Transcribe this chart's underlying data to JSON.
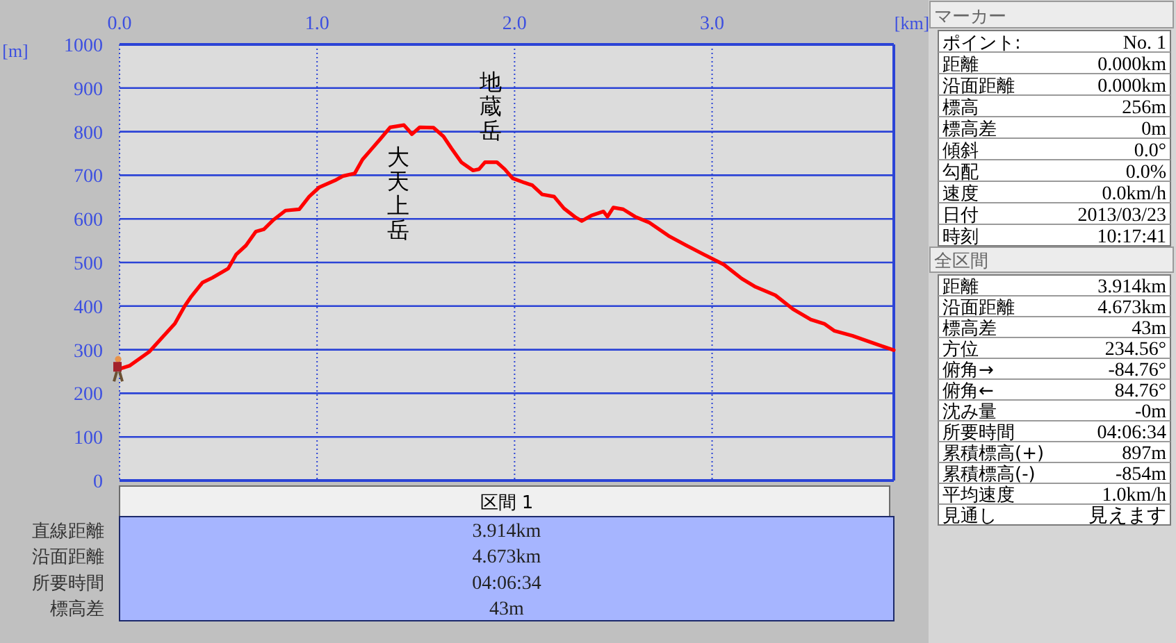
{
  "chart_data": [
    {
      "type": "line",
      "xlabel": "[km]",
      "ylabel": "[m]",
      "xlim": [
        0,
        3.92
      ],
      "xticks": [
        {
          "value": 0,
          "label": "0.0"
        },
        {
          "value": 1,
          "label": "1.0"
        },
        {
          "value": 2,
          "label": "2.0"
        },
        {
          "value": 3,
          "label": "3.0"
        }
      ],
      "ylim": [
        0,
        1000
      ],
      "yticks": [
        0,
        100,
        200,
        300,
        400,
        500,
        600,
        700,
        800,
        900,
        1000
      ],
      "grid": true,
      "annotations": [
        {
          "text": "大天上岳",
          "x": 1.41,
          "y": 813
        },
        {
          "text": "地蔵岳",
          "x": 1.88,
          "y": 730
        }
      ],
      "series": [
        {
          "color": "#ff0000",
          "x": [
            0,
            0.05,
            0.15,
            0.22,
            0.28,
            0.33,
            0.36,
            0.42,
            0.47,
            0.55,
            0.59,
            0.64,
            0.69,
            0.73,
            0.78,
            0.84,
            0.91,
            0.96,
            1.01,
            1.09,
            1.13,
            1.19,
            1.23,
            1.27,
            1.32,
            1.37,
            1.44,
            1.46,
            1.48,
            1.52,
            1.59,
            1.64,
            1.68,
            1.73,
            1.79,
            1.82,
            1.85,
            1.91,
            1.95,
            1.99,
            2.05,
            2.09,
            2.14,
            2.2,
            2.25,
            2.31,
            2.34,
            2.39,
            2.45,
            2.47,
            2.5,
            2.55,
            2.61,
            2.68,
            2.78,
            2.87,
            2.96,
            3.06,
            3.15,
            3.22,
            3.32,
            3.41,
            3.5,
            3.57,
            3.62,
            3.71,
            3.81,
            3.92
          ],
          "values": [
            256,
            263,
            295,
            330,
            360,
            400,
            420,
            454,
            465,
            486,
            518,
            539,
            571,
            576,
            598,
            619,
            622,
            651,
            672,
            688,
            698,
            704,
            736,
            757,
            783,
            810,
            815,
            805,
            794,
            810,
            809,
            789,
            762,
            730,
            711,
            714,
            730,
            730,
            714,
            693,
            683,
            677,
            656,
            651,
            624,
            603,
            595,
            608,
            617,
            605,
            626,
            622,
            605,
            592,
            561,
            539,
            518,
            495,
            463,
            444,
            425,
            393,
            369,
            359,
            343,
            332,
            316,
            299
          ]
        }
      ]
    },
    {
      "type": "other",
      "title": "区間 1",
      "annotations": [
        "直線距離",
        "3.914km",
        "沿面距離",
        "4.673km",
        "所要時間",
        "04:06:34",
        "標高差",
        "43m"
      ]
    },
    {
      "type": "other",
      "title": "マーカー",
      "annotations": [
        "ポイント:",
        "No. 1",
        "距離",
        "0.000km",
        "沿面距離",
        "0.000km",
        "標高",
        "256m",
        "標高差",
        "0m",
        "傾斜",
        "0.0°",
        "勾配",
        "0.0%",
        "速度",
        "0.0km/h",
        "日付",
        "2013/03/23",
        "時刻",
        "10:17:41"
      ]
    },
    {
      "type": "other",
      "title": "全区間",
      "annotations": [
        "距離",
        "3.914km",
        "沿面距離",
        "4.673km",
        "標高差",
        "43m",
        "方位",
        "234.56°",
        "俯角→",
        "-84.76°",
        "俯角←",
        "84.76°",
        "沈み量",
        "-0m",
        "所要時間",
        "04:06:34",
        "累積標高(+)",
        "897m",
        "累積標高(-)",
        "-854m",
        "平均速度",
        "1.0km/h",
        "見通し",
        "見えます"
      ]
    }
  ]
}
